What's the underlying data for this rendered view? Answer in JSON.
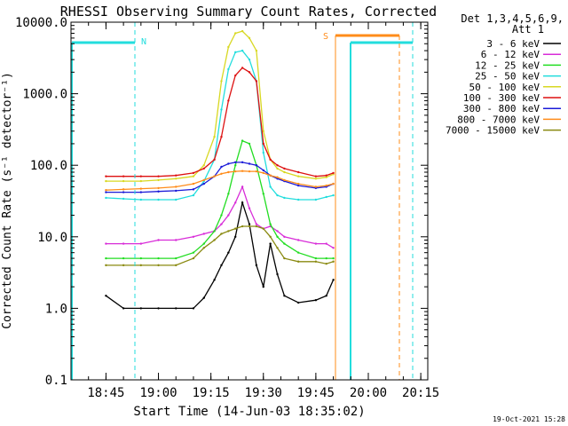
{
  "chart_data": {
    "type": "line",
    "title": "RHESSI Observing Summary Count Rates, Corrected",
    "xlabel": "Start Time (14-Jun-03 18:35:02)",
    "ylabel": "Corrected Count Rate (s⁻¹ detector⁻¹)",
    "yscale": "log",
    "xlim": [
      "18:35",
      "20:17"
    ],
    "ylim": [
      0.1,
      10000.0
    ],
    "x_ticks": [
      "18:45",
      "19:00",
      "19:15",
      "19:30",
      "19:45",
      "20:00",
      "20:15"
    ],
    "y_ticks": [
      "0.1",
      "1.0",
      "10.0",
      "100.0",
      "1000.0",
      "10000.0"
    ],
    "grid": false,
    "legend_title": "Det 1,3,4,5,6,9,",
    "legend_subtitle": "Att 1",
    "legend_position": "top-right",
    "timestamp": "19-Oct-2021 15:28",
    "x": [
      "18:45",
      "18:50",
      "18:55",
      "19:00",
      "19:05",
      "19:10",
      "19:13",
      "19:16",
      "19:18",
      "19:20",
      "19:22",
      "19:24",
      "19:26",
      "19:28",
      "19:30",
      "19:32",
      "19:34",
      "19:36",
      "19:40",
      "19:45",
      "19:48",
      "19:50"
    ],
    "series": [
      {
        "name": "3 - 6 keV",
        "color": "#000000",
        "values": [
          1.5,
          1.0,
          1.0,
          1.0,
          1.0,
          1.0,
          1.4,
          2.5,
          4,
          6,
          10,
          30,
          15,
          4,
          2,
          8,
          3,
          1.5,
          1.2,
          1.3,
          1.5,
          2.5
        ]
      },
      {
        "name": "6 - 12 keV",
        "color": "#d82cd8",
        "values": [
          8,
          8,
          8,
          9,
          9,
          10,
          11,
          12,
          15,
          20,
          30,
          50,
          25,
          15,
          13,
          14,
          12,
          10,
          9,
          8,
          8,
          7
        ]
      },
      {
        "name": "12 - 25 keV",
        "color": "#22dd22",
        "values": [
          5,
          5,
          5,
          5,
          5,
          6,
          8,
          12,
          20,
          40,
          100,
          220,
          200,
          100,
          40,
          15,
          10,
          8,
          6,
          5,
          5,
          5
        ]
      },
      {
        "name": "25 - 50 keV",
        "color": "#22dddd",
        "values": [
          35,
          34,
          33,
          33,
          33,
          38,
          60,
          120,
          600,
          2200,
          3800,
          4000,
          3000,
          1500,
          150,
          50,
          38,
          35,
          33,
          33,
          36,
          38
        ]
      },
      {
        "name": "50 - 100 keV",
        "color": "#d8d822",
        "values": [
          60,
          60,
          60,
          62,
          65,
          70,
          100,
          250,
          1500,
          4500,
          7000,
          7500,
          6000,
          4000,
          300,
          120,
          90,
          80,
          70,
          65,
          68,
          75
        ]
      },
      {
        "name": "100 - 300 keV",
        "color": "#dd1111",
        "values": [
          70,
          70,
          70,
          70,
          72,
          78,
          90,
          120,
          250,
          800,
          1800,
          2300,
          2000,
          1500,
          200,
          120,
          100,
          90,
          80,
          70,
          72,
          78
        ]
      },
      {
        "name": "300 - 800 keV",
        "color": "#1a1ad8",
        "values": [
          42,
          42,
          42,
          43,
          44,
          46,
          55,
          70,
          95,
          105,
          110,
          110,
          105,
          100,
          85,
          72,
          65,
          60,
          52,
          48,
          50,
          55
        ]
      },
      {
        "name": "800 - 7000 keV",
        "color": "#ff8c1a",
        "values": [
          45,
          46,
          47,
          48,
          50,
          55,
          62,
          70,
          76,
          80,
          82,
          83,
          82,
          82,
          78,
          72,
          68,
          62,
          55,
          50,
          52,
          55
        ]
      },
      {
        "name": "7000 - 15000 keV",
        "color": "#8a8a11",
        "values": [
          4,
          4,
          4,
          4,
          4,
          5,
          7,
          9,
          11,
          12,
          13,
          14,
          14,
          14,
          13,
          10,
          7,
          5,
          4.5,
          4.5,
          4.2,
          4.5
        ]
      }
    ],
    "annotations": [
      {
        "label": "N",
        "color": "#22dddd"
      },
      {
        "label": "S",
        "color": "#ff8c1a"
      }
    ]
  }
}
